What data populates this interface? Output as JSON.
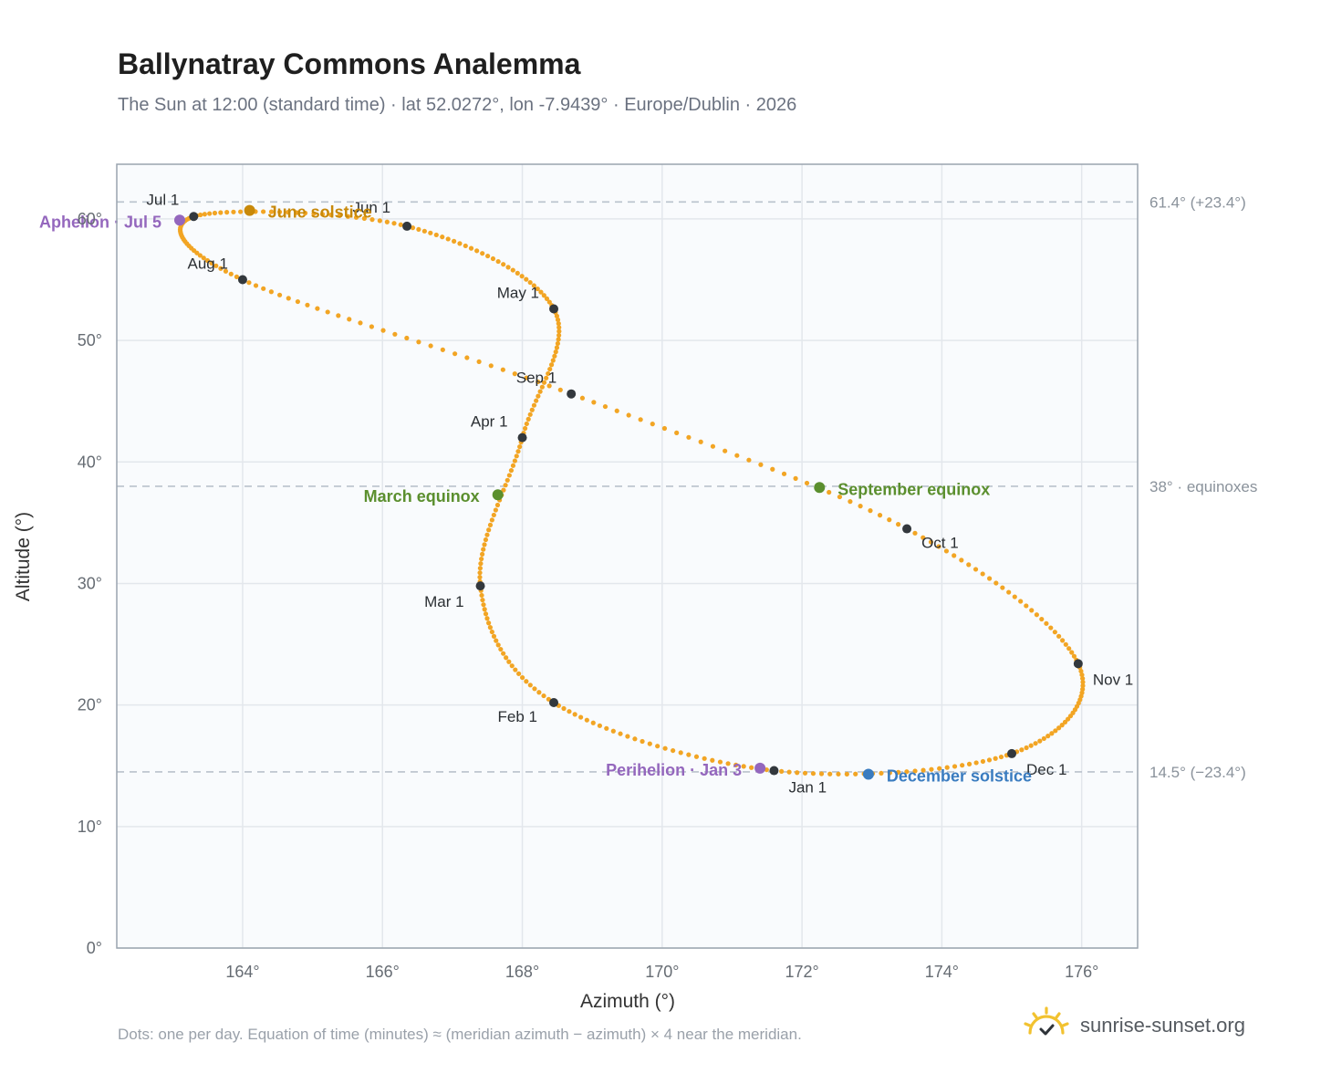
{
  "header": {
    "title": "Ballynatray Commons Analemma",
    "subtitle": "The Sun at 12:00 (standard time) · lat 52.0272°, lon -7.9439° · Europe/Dublin · 2026"
  },
  "footer": {
    "note": "Dots: one per day. Equation of time (minutes) ≈ (meridian azimuth − azimuth) × 4 near the meridian.",
    "brand": "sunrise-sunset.org",
    "brand_icon": "sun-icon"
  },
  "colors": {
    "curve": "#f2a524",
    "month_marker": "#33383d",
    "june_solstice": "#c8890a",
    "december_solstice": "#3a7cc0",
    "equinox": "#5b8f2e",
    "apsis": "#9467bd",
    "plot_background": "#f9fbfd",
    "grid": "#e3e7ec",
    "frame": "#9aa4af",
    "reference_line": "#b9c2cc"
  },
  "chart_data": {
    "type": "scatter",
    "xlabel": "Azimuth (°)",
    "ylabel": "Altitude (°)",
    "xlim": [
      162.2,
      176.8
    ],
    "ylim": [
      0,
      64.5
    ],
    "xticks": [
      164,
      166,
      168,
      170,
      172,
      174,
      176
    ],
    "xtick_labels": [
      "164°",
      "166°",
      "168°",
      "170°",
      "172°",
      "174°",
      "176°"
    ],
    "yticks": [
      0,
      10,
      20,
      30,
      40,
      50,
      60
    ],
    "ytick_labels": [
      "0°",
      "10°",
      "20°",
      "30°",
      "40°",
      "50°",
      "60°"
    ],
    "grid": true,
    "reference_lines": [
      {
        "y": 61.4,
        "label": "61.4° (+23.4°)"
      },
      {
        "y": 38.0,
        "label": "38° · equinoxes"
      },
      {
        "y": 14.5,
        "label": "14.5° (−23.4°)"
      }
    ],
    "monthly_points": [
      {
        "label": "Jan 1",
        "x": 171.6,
        "y": 14.6
      },
      {
        "label": "Feb 1",
        "x": 168.45,
        "y": 20.2
      },
      {
        "label": "Mar 1",
        "x": 167.4,
        "y": 29.8
      },
      {
        "label": "Apr 1",
        "x": 168.0,
        "y": 42.0
      },
      {
        "label": "May 1",
        "x": 168.45,
        "y": 52.6
      },
      {
        "label": "Jun 1",
        "x": 166.35,
        "y": 59.4
      },
      {
        "label": "Jul 1",
        "x": 163.3,
        "y": 60.2
      },
      {
        "label": "Aug 1",
        "x": 164.0,
        "y": 55.0
      },
      {
        "label": "Sep 1",
        "x": 168.7,
        "y": 45.6
      },
      {
        "label": "Oct 1",
        "x": 173.5,
        "y": 34.5
      },
      {
        "label": "Nov 1",
        "x": 175.95,
        "y": 23.4
      },
      {
        "label": "Dec 1",
        "x": 175.0,
        "y": 16.0
      }
    ],
    "events": [
      {
        "label": "June solstice",
        "x": 164.1,
        "y": 60.7,
        "color_key": "june_solstice"
      },
      {
        "label": "December solstice",
        "x": 172.95,
        "y": 14.3,
        "color_key": "december_solstice"
      },
      {
        "label": "March equinox",
        "x": 167.65,
        "y": 37.3,
        "color_key": "equinox"
      },
      {
        "label": "September equinox",
        "x": 172.25,
        "y": 37.9,
        "color_key": "equinox"
      },
      {
        "label": "Aphelion · Jul 5",
        "x": 163.1,
        "y": 59.9,
        "color_key": "apsis"
      },
      {
        "label": "Perihelion · Jan 3",
        "x": 171.4,
        "y": 14.8,
        "color_key": "apsis"
      }
    ]
  }
}
